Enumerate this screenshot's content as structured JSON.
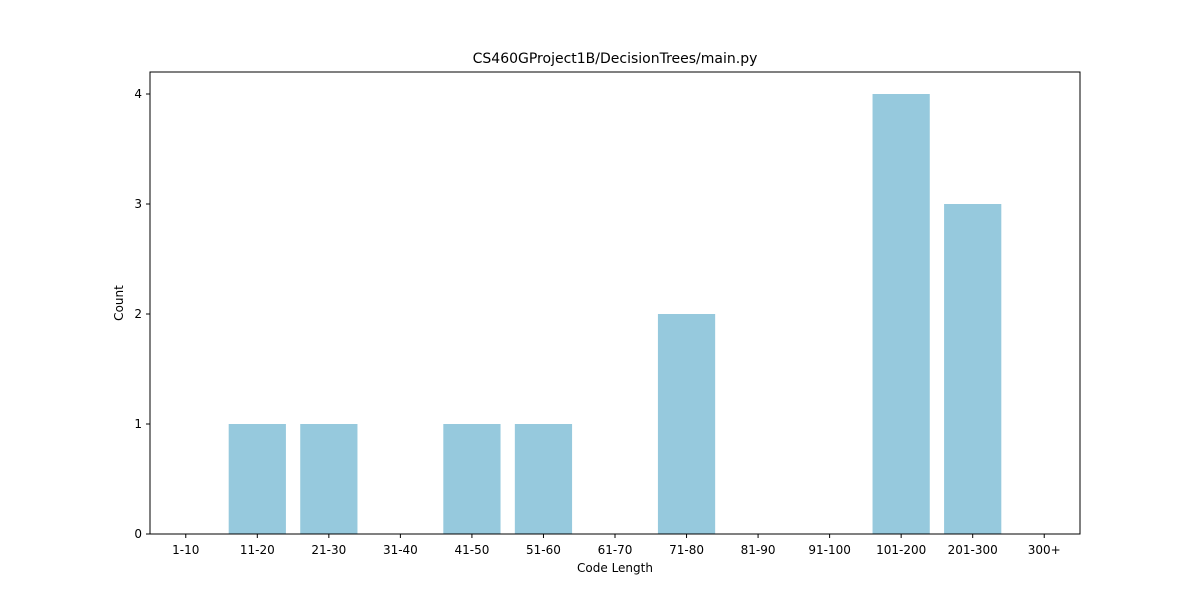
{
  "chart_data": {
    "type": "bar",
    "title": "CS460GProject1B/DecisionTrees/main.py",
    "xlabel": "Code Length",
    "ylabel": "Count",
    "categories": [
      "1-10",
      "11-20",
      "21-30",
      "31-40",
      "41-50",
      "51-60",
      "61-70",
      "71-80",
      "81-90",
      "91-100",
      "101-200",
      "201-300",
      "300+"
    ],
    "values": [
      0,
      1,
      1,
      0,
      1,
      1,
      0,
      2,
      0,
      0,
      4,
      3,
      0
    ],
    "yticks": [
      0,
      1,
      2,
      3,
      4
    ],
    "ylim": [
      0,
      4.2
    ],
    "grid": false,
    "bar_color": "#96c9dd"
  }
}
